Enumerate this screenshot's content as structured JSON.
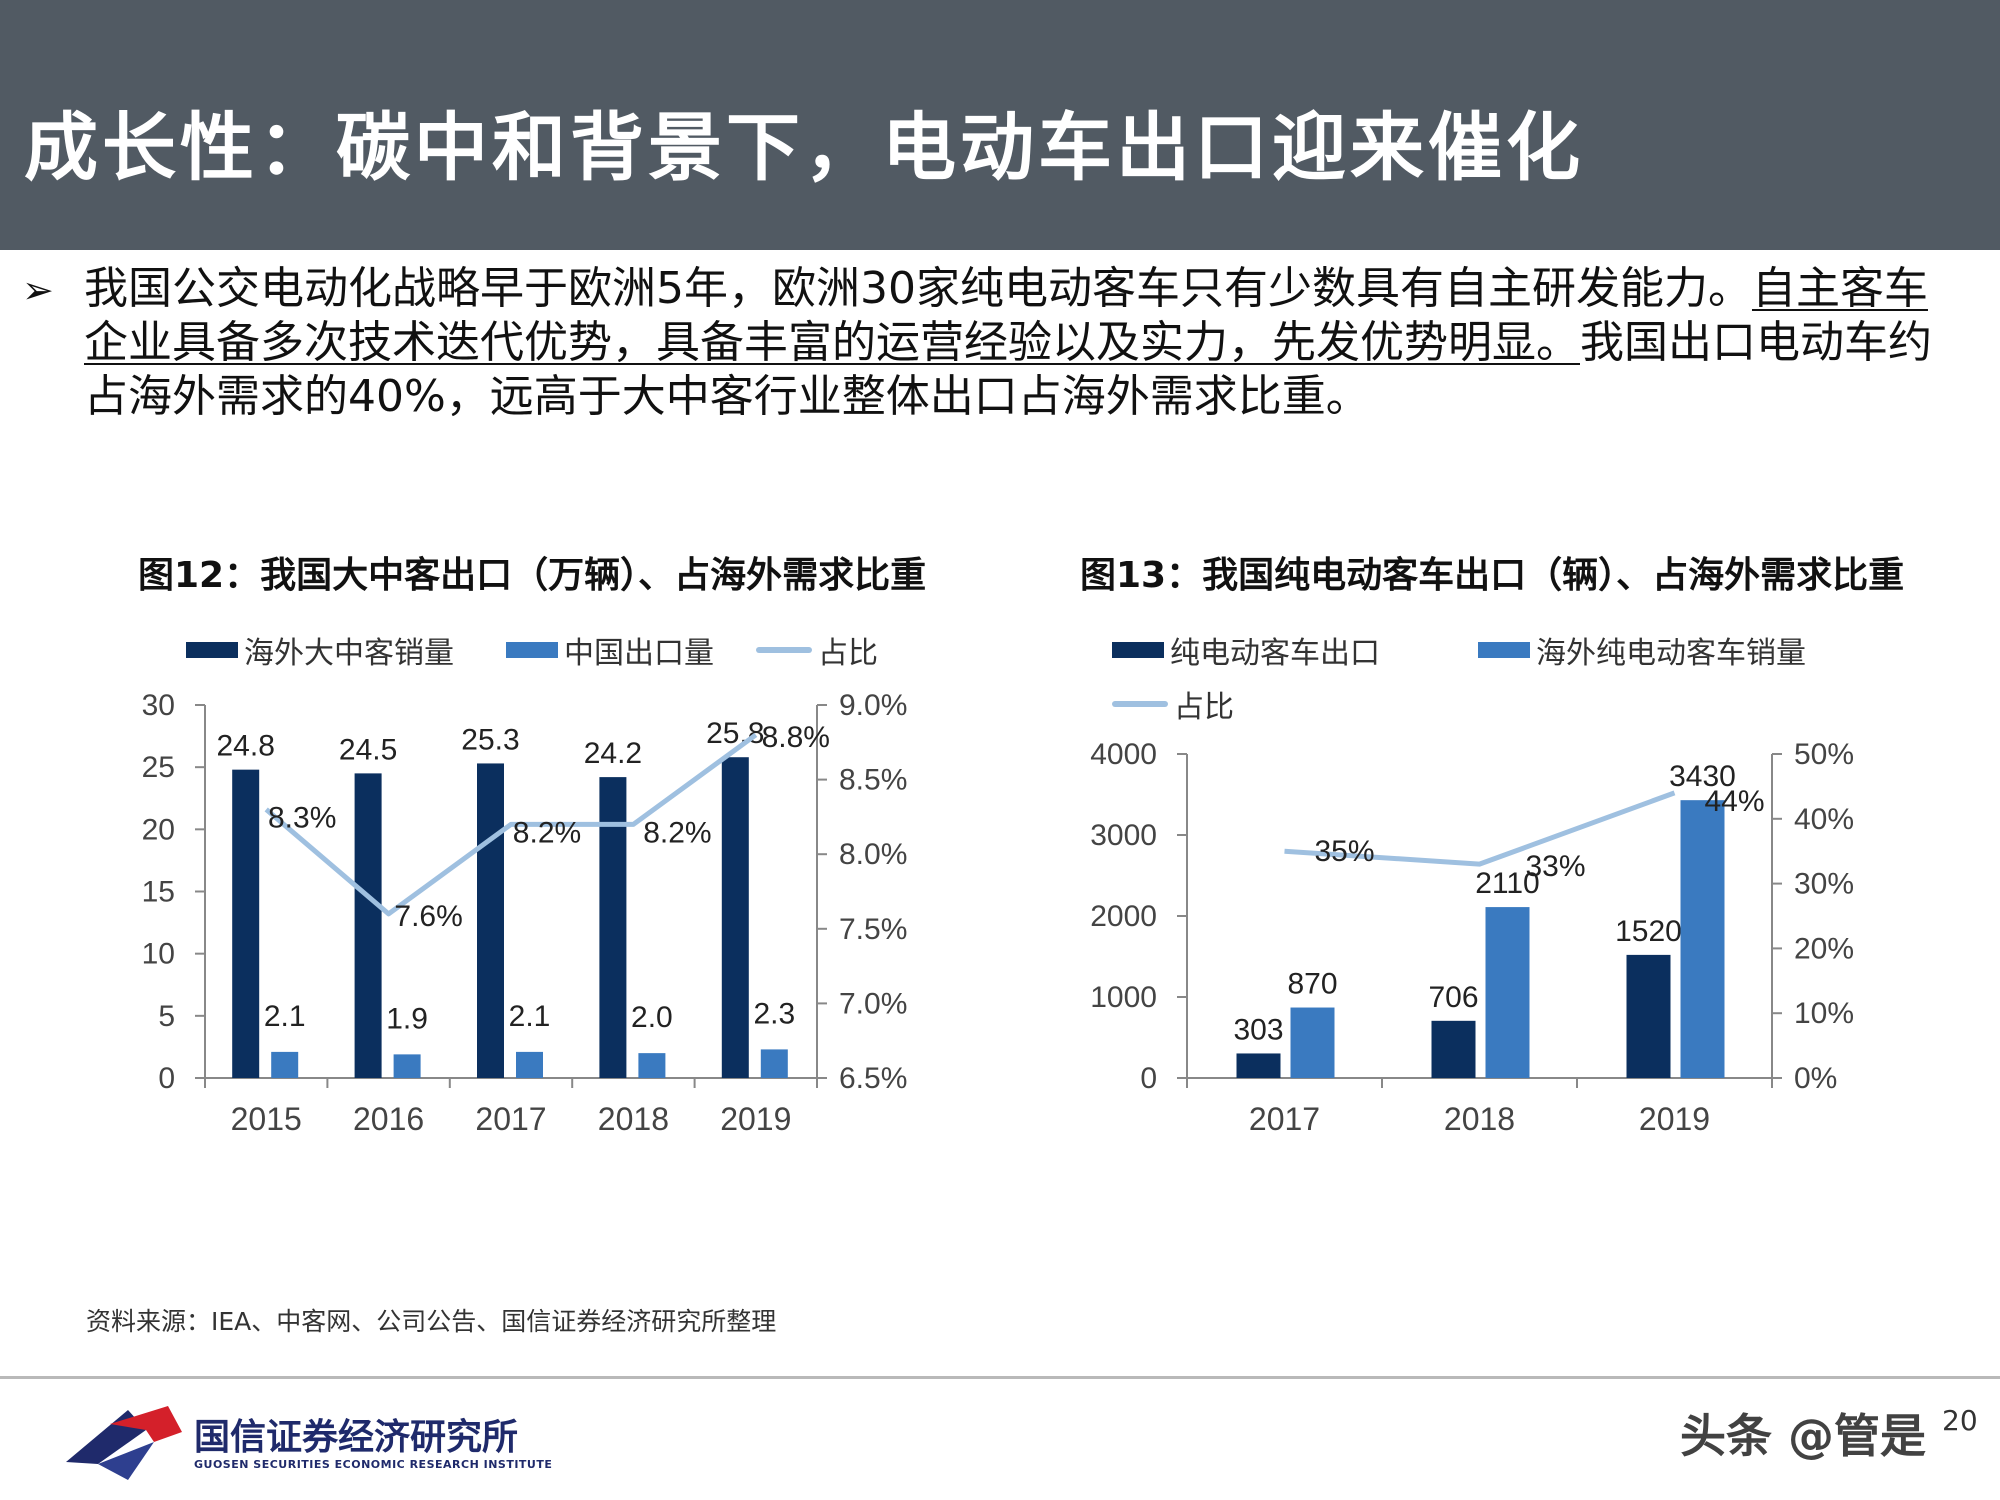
{
  "header": {
    "title": "成长性：碳中和背景下，电动车出口迎来催化"
  },
  "bullet": {
    "arrow": "➢",
    "part1": "我国公交电动化战略早于欧洲5年，欧洲30家纯电动客车只有少数具有自主研发能力。",
    "part2": "自主客车企业具备多次技术迭代优势，具备丰富的运营经验以及实力，先发优势明显。",
    "part3": "我国出口电动车约占海外需求的40%，远高于大中客行业整体出口占海外需求比重。"
  },
  "chart_data": [
    {
      "id": "fig12",
      "type": "bar",
      "title": "图12：我国大中客出口（万辆）、占海外需求比重",
      "categories": [
        "2015",
        "2016",
        "2017",
        "2018",
        "2019"
      ],
      "series": [
        {
          "name": "海外大中客销量",
          "type": "bar",
          "axis": "left",
          "color": "#0b2f5e",
          "values": [
            24.8,
            24.5,
            25.3,
            24.2,
            25.8
          ],
          "labels": [
            "24.8",
            "24.5",
            "25.3",
            "24.2",
            "25.8"
          ]
        },
        {
          "name": "中国出口量",
          "type": "bar",
          "axis": "left",
          "color": "#3a7ac0",
          "values": [
            2.1,
            1.9,
            2.1,
            2.0,
            2.3
          ],
          "labels": [
            "2.1",
            "1.9",
            "2.1",
            "2.0",
            "2.3"
          ]
        },
        {
          "name": "占比",
          "type": "line",
          "axis": "right",
          "color": "#9fc0e0",
          "values": [
            8.3,
            7.6,
            8.2,
            8.2,
            8.8
          ],
          "labels": [
            "8.3%",
            "7.6%",
            "8.2%",
            "8.2%",
            "8.8%"
          ]
        }
      ],
      "y_left": {
        "min": 0,
        "max": 30,
        "ticks": [
          "0",
          "5",
          "10",
          "15",
          "20",
          "25",
          "30"
        ]
      },
      "y_right": {
        "min": 6.5,
        "max": 9.0,
        "ticks": [
          "6.5%",
          "7.0%",
          "7.5%",
          "8.0%",
          "8.5%",
          "9.0%"
        ]
      },
      "grid": false,
      "legend_position": "top"
    },
    {
      "id": "fig13",
      "type": "bar",
      "title": "图13：我国纯电动客车出口（辆）、占海外需求比重",
      "categories": [
        "2017",
        "2018",
        "2019"
      ],
      "series": [
        {
          "name": "纯电动客车出口",
          "type": "bar",
          "axis": "left",
          "color": "#0b2f5e",
          "values": [
            303,
            706,
            1520
          ],
          "labels": [
            "303",
            "706",
            "1520"
          ]
        },
        {
          "name": "海外纯电动客车销量",
          "type": "bar",
          "axis": "left",
          "color": "#3a7ac0",
          "values": [
            870,
            2110,
            3430
          ],
          "labels": [
            "870",
            "2110",
            "3430"
          ]
        },
        {
          "name": "占比",
          "type": "line",
          "axis": "right",
          "color": "#9fc0e0",
          "values": [
            35,
            33,
            44
          ],
          "labels": [
            "35%",
            "33%",
            "44%"
          ]
        }
      ],
      "y_left": {
        "min": 0,
        "max": 4000,
        "ticks": [
          "0",
          "1000",
          "2000",
          "3000",
          "4000"
        ]
      },
      "y_right": {
        "min": 0,
        "max": 50,
        "ticks": [
          "0%",
          "10%",
          "20%",
          "30%",
          "40%",
          "50%"
        ]
      },
      "grid": false,
      "legend_position": "top"
    }
  ],
  "source": "资料来源：IEA、中客网、公司公告、国信证券经济研究所整理",
  "footer": {
    "logo_name": "国信证券经济研究所",
    "logo_sub": "GUOSEN SECURITIES ECONOMIC RESEARCH INSTITUTE",
    "watermark": "头条 @管是",
    "page_number": "20"
  }
}
